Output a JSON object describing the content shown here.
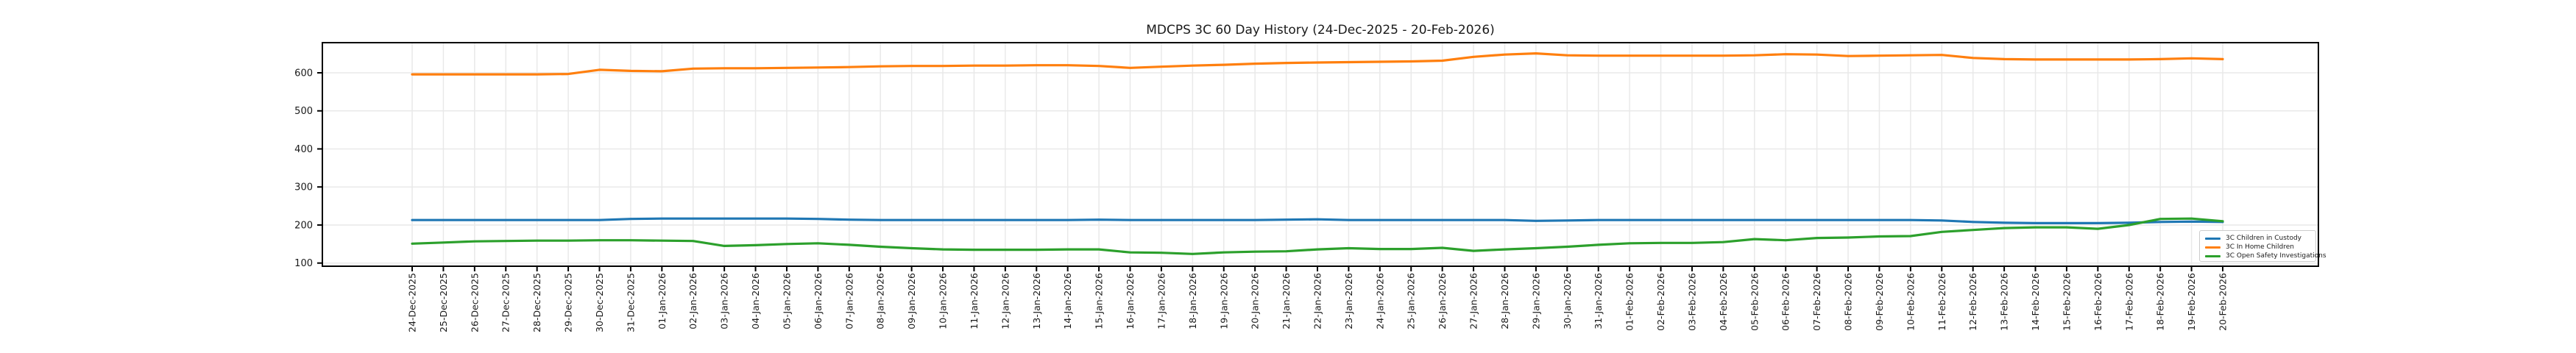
{
  "figure": {
    "background": "#ffffff",
    "axes_border_color": "#000000",
    "grid_color": "#e9e9e9"
  },
  "chart_data": {
    "type": "line",
    "title": "MDCPS 3C 60 Day History (24-Dec-2025 - 20-Feb-2026)",
    "xlabel": "",
    "ylabel": "",
    "grid": true,
    "legend_position": "lower right",
    "ylim": [
      92,
      679
    ],
    "y_ticks": [
      100,
      200,
      300,
      400,
      500,
      600
    ],
    "categories": [
      "24-Dec-2025",
      "25-Dec-2025",
      "26-Dec-2025",
      "27-Dec-2025",
      "28-Dec-2025",
      "29-Dec-2025",
      "30-Dec-2025",
      "31-Dec-2025",
      "01-Jan-2026",
      "02-Jan-2026",
      "03-Jan-2026",
      "04-Jan-2026",
      "05-Jan-2026",
      "06-Jan-2026",
      "07-Jan-2026",
      "08-Jan-2026",
      "09-Jan-2026",
      "10-Jan-2026",
      "11-Jan-2026",
      "12-Jan-2026",
      "13-Jan-2026",
      "14-Jan-2026",
      "15-Jan-2026",
      "16-Jan-2026",
      "17-Jan-2026",
      "18-Jan-2026",
      "19-Jan-2026",
      "20-Jan-2026",
      "21-Jan-2026",
      "22-Jan-2026",
      "23-Jan-2026",
      "24-Jan-2026",
      "25-Jan-2026",
      "26-Jan-2026",
      "27-Jan-2026",
      "28-Jan-2026",
      "29-Jan-2026",
      "30-Jan-2026",
      "31-Jan-2026",
      "01-Feb-2026",
      "02-Feb-2026",
      "03-Feb-2026",
      "04-Feb-2026",
      "05-Feb-2026",
      "06-Feb-2026",
      "07-Feb-2026",
      "08-Feb-2026",
      "09-Feb-2026",
      "10-Feb-2026",
      "11-Feb-2026",
      "12-Feb-2026",
      "13-Feb-2026",
      "14-Feb-2026",
      "15-Feb-2026",
      "16-Feb-2026",
      "17-Feb-2026",
      "18-Feb-2026",
      "19-Feb-2026",
      "20-Feb-2026"
    ],
    "series": [
      {
        "name": "3C Children in Custody",
        "color": "#1f77b4",
        "values": [
          213,
          213,
          213,
          213,
          213,
          213,
          213,
          216,
          217,
          217,
          217,
          217,
          217,
          216,
          214,
          213,
          213,
          213,
          213,
          213,
          213,
          213,
          214,
          213,
          213,
          213,
          213,
          213,
          214,
          215,
          213,
          213,
          213,
          213,
          213,
          213,
          211,
          212,
          213,
          213,
          213,
          213,
          213,
          213,
          213,
          213,
          213,
          213,
          213,
          212,
          208,
          206,
          205,
          205,
          205,
          206,
          208,
          209,
          208
        ]
      },
      {
        "name": "3C In Home Children",
        "color": "#ff7f0e",
        "values": [
          596,
          596,
          596,
          596,
          596,
          597,
          608,
          605,
          604,
          611,
          612,
          612,
          613,
          614,
          615,
          617,
          618,
          618,
          619,
          619,
          620,
          620,
          618,
          613,
          616,
          619,
          621,
          624,
          626,
          627,
          628,
          629,
          630,
          632,
          642,
          648,
          651,
          646,
          645,
          645,
          645,
          645,
          645,
          646,
          649,
          648,
          644,
          645,
          646,
          647,
          639,
          636,
          635,
          635,
          635,
          635,
          636,
          638,
          636
        ]
      },
      {
        "name": "3C Open Safety Investigations",
        "color": "#2ca02c",
        "values": [
          151,
          154,
          157,
          158,
          159,
          159,
          160,
          160,
          159,
          158,
          145,
          147,
          150,
          152,
          148,
          143,
          139,
          136,
          135,
          135,
          135,
          136,
          136,
          128,
          127,
          124,
          128,
          130,
          131,
          136,
          139,
          137,
          137,
          140,
          132,
          136,
          139,
          143,
          148,
          152,
          153,
          153,
          155,
          163,
          160,
          166,
          167,
          170,
          171,
          182,
          187,
          192,
          194,
          194,
          190,
          200,
          216,
          217,
          210
        ]
      }
    ]
  }
}
